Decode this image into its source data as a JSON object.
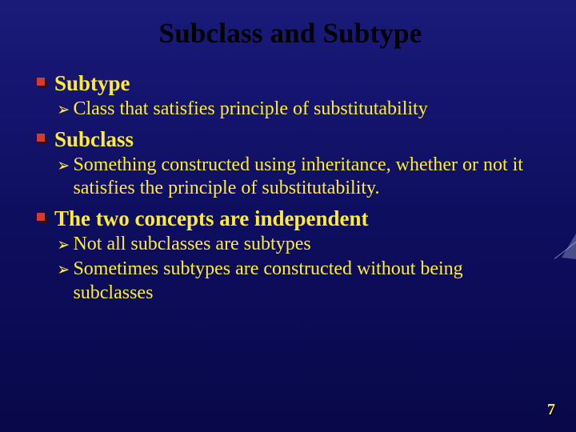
{
  "colors": {
    "background_gradient": [
      "#1a1a7a",
      "#0e0e60",
      "#08084a"
    ],
    "title_color": "#000000",
    "text_color": "#ffeb33",
    "bullet_front": "#d63a2a",
    "bullet_shadow": "#3a0d0d"
  },
  "typography": {
    "family": "Times New Roman",
    "title_fontsize": 35,
    "h1_fontsize": 27,
    "sub_fontsize": 24,
    "pagenum_fontsize": 20
  },
  "slide": {
    "title": "Subclass and Subtype",
    "items": [
      {
        "heading": "Subtype",
        "subs": [
          "Class that satisfies principle of substitutability"
        ]
      },
      {
        "heading": "Subclass",
        "subs": [
          "Something constructed using inheritance, whether or not it satisfies the principle of substitutability."
        ]
      },
      {
        "heading": "The two concepts are independent",
        "subs": [
          "Not all subclasses are subtypes",
          "Sometimes subtypes are constructed without being subclasses"
        ]
      }
    ],
    "page_number": "7"
  }
}
